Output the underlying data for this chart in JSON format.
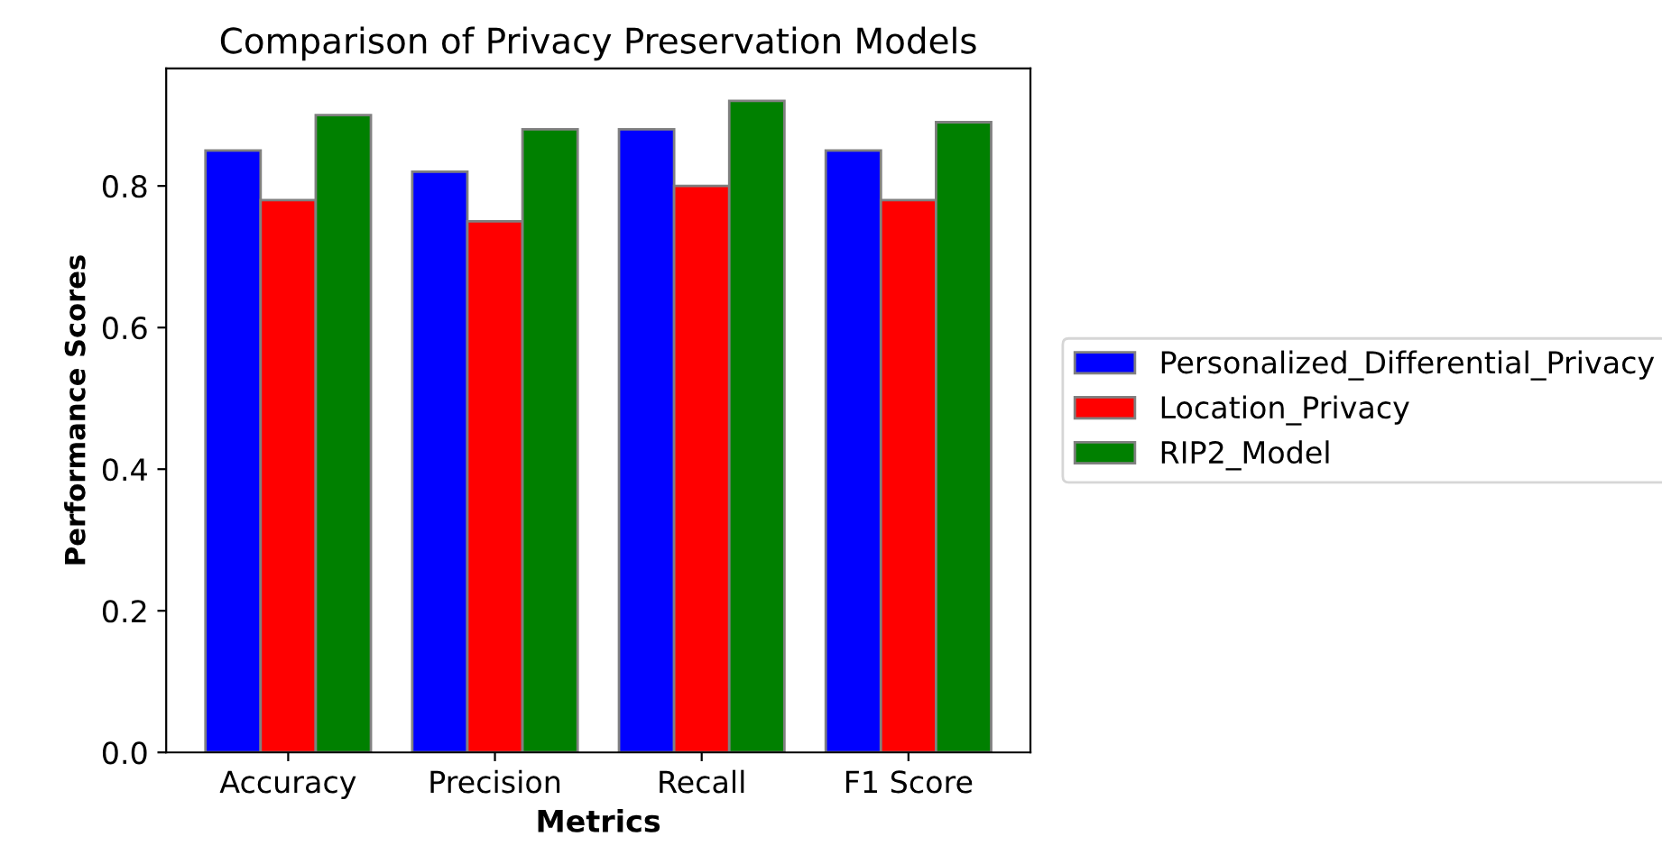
{
  "chart_data": {
    "type": "bar",
    "title": "Comparison of Privacy Preservation Models",
    "xlabel": "Metrics",
    "ylabel": "Performance Scores",
    "categories": [
      "Accuracy",
      "Precision",
      "Recall",
      "F1 Score"
    ],
    "series": [
      {
        "name": "Personalized_Differential_Privacy",
        "color": "#0000ff",
        "values": [
          0.85,
          0.82,
          0.88,
          0.85
        ]
      },
      {
        "name": "Location_Privacy",
        "color": "#ff0000",
        "values": [
          0.78,
          0.75,
          0.8,
          0.78
        ]
      },
      {
        "name": "RIP2_Model",
        "color": "#008000",
        "values": [
          0.9,
          0.88,
          0.92,
          0.89
        ]
      }
    ],
    "ylim": [
      0,
      0.966
    ],
    "yticks": [
      {
        "value": 0,
        "label": "0.0"
      },
      0.2,
      0.4,
      0.6,
      0.8
    ],
    "grid": false,
    "legend": "right"
  }
}
